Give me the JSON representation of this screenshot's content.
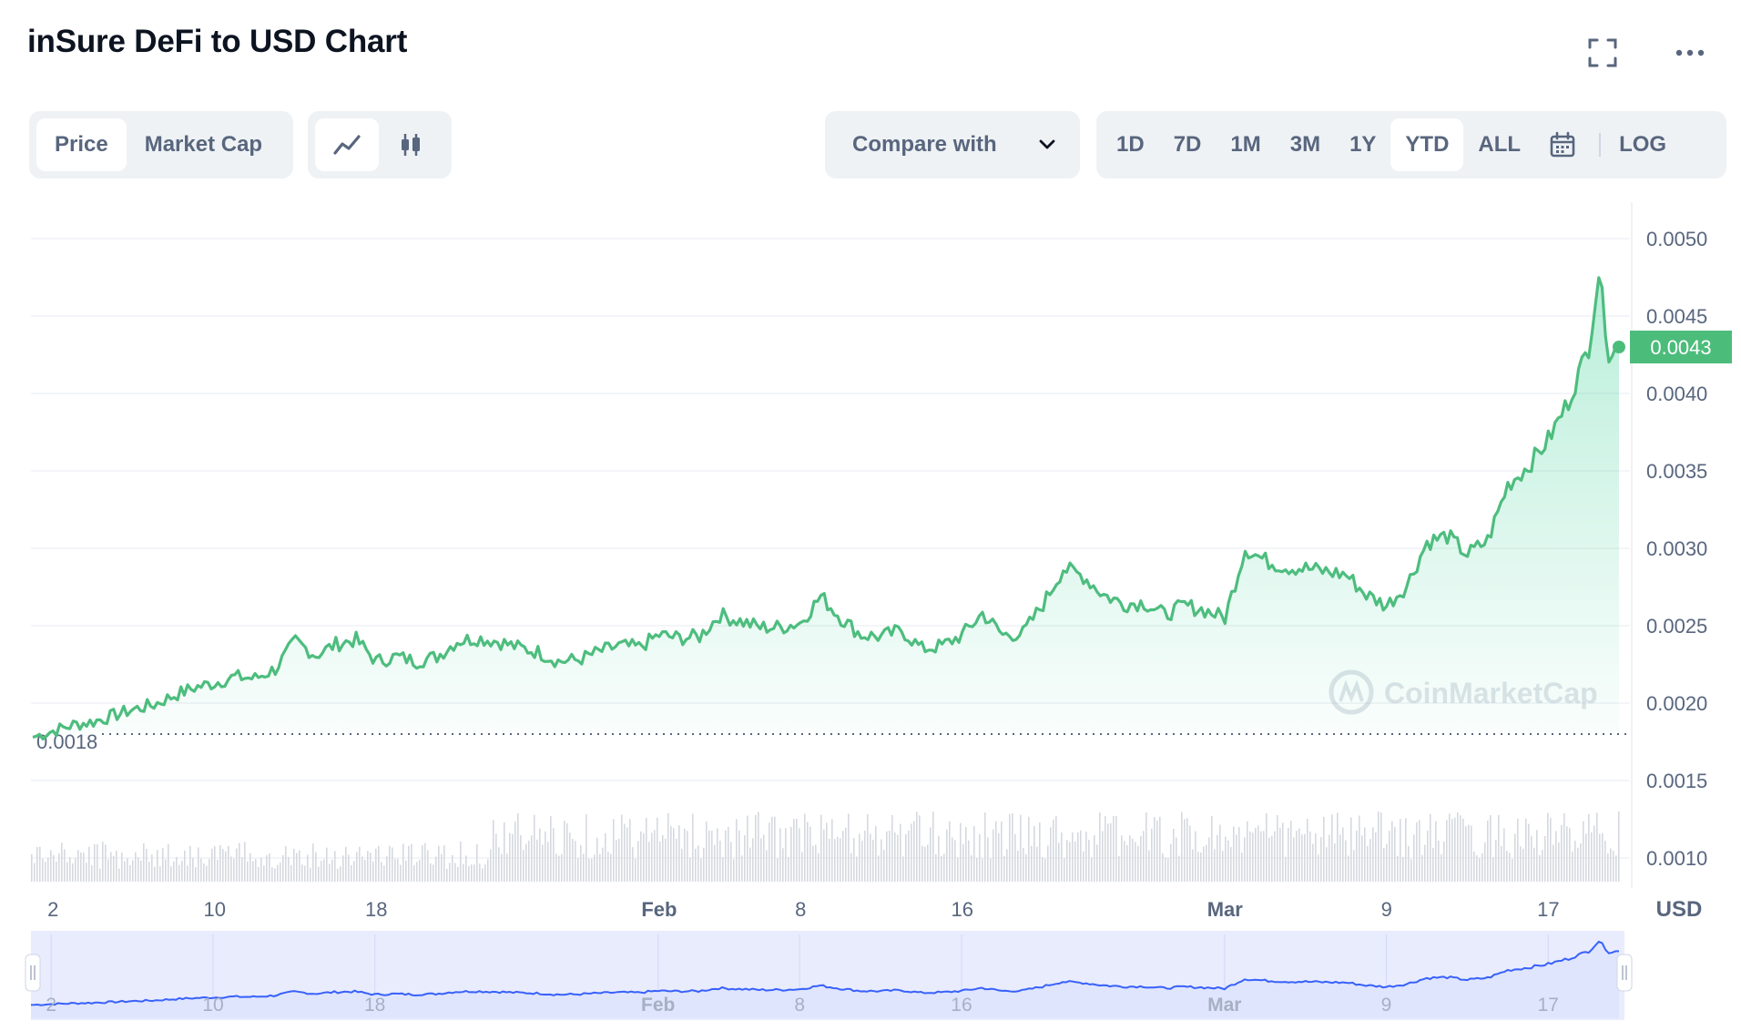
{
  "header": {
    "title": "inSure DeFi to USD Chart",
    "fullscreen_icon": "fullscreen-icon",
    "more_icon": "more-dots-icon"
  },
  "toolbar": {
    "metric_tabs": [
      {
        "label": "Price",
        "active": true
      },
      {
        "label": "Market Cap",
        "active": false
      }
    ],
    "chart_type_icons": [
      "line-chart-icon",
      "candlestick-icon"
    ],
    "compare_label": "Compare with",
    "ranges": [
      {
        "label": "1D",
        "active": false
      },
      {
        "label": "7D",
        "active": false
      },
      {
        "label": "1M",
        "active": false
      },
      {
        "label": "3M",
        "active": false
      },
      {
        "label": "1Y",
        "active": false
      },
      {
        "label": "YTD",
        "active": true
      },
      {
        "label": "ALL",
        "active": false
      }
    ],
    "calendar_icon": "calendar-icon",
    "log_label": "LOG"
  },
  "colors": {
    "line": "#16c784",
    "line_stroke": "#4dbd7e",
    "current_price_bg": "#4cbc7b",
    "navigator_line": "#3861fb",
    "navigator_fill": "#e9ecfd",
    "volume": "#d5d9df"
  },
  "chart_data": {
    "type": "line",
    "y_ticks": [
      "0.0050",
      "0.0045",
      "0.0040",
      "0.0035",
      "0.0030",
      "0.0025",
      "0.0020",
      "0.0015",
      "0.0010"
    ],
    "ylim": [
      0.0007,
      0.0052
    ],
    "x_ticks": [
      {
        "label": "2",
        "day": 1,
        "bold": false
      },
      {
        "label": "10",
        "day": 9,
        "bold": false
      },
      {
        "label": "18",
        "day": 17,
        "bold": false
      },
      {
        "label": "Feb",
        "day": 31,
        "bold": true
      },
      {
        "label": "8",
        "day": 38,
        "bold": false
      },
      {
        "label": "16",
        "day": 46,
        "bold": false
      },
      {
        "label": "Mar",
        "day": 59,
        "bold": true
      },
      {
        "label": "9",
        "day": 67,
        "bold": false
      },
      {
        "label": "17",
        "day": 75,
        "bold": false
      }
    ],
    "currency_label": "USD",
    "current_price": "0.0043",
    "start_price_label": "0.0018",
    "watermark": "CoinMarketCap",
    "series": [
      {
        "points": [
          [
            0,
            0.00178
          ],
          [
            1,
            0.00182
          ],
          [
            2,
            0.00186
          ],
          [
            3,
            0.00188
          ],
          [
            4,
            0.00192
          ],
          [
            5,
            0.00196
          ],
          [
            6,
            0.00199
          ],
          [
            7,
            0.00205
          ],
          [
            8,
            0.0021
          ],
          [
            9,
            0.00213
          ],
          [
            10,
            0.00217
          ],
          [
            11,
            0.00216
          ],
          [
            12,
            0.00222
          ],
          [
            13,
            0.0024
          ],
          [
            14,
            0.00231
          ],
          [
            15,
            0.00238
          ],
          [
            16,
            0.00241
          ],
          [
            17,
            0.00227
          ],
          [
            18,
            0.0023
          ],
          [
            19,
            0.00227
          ],
          [
            20,
            0.0023
          ],
          [
            21,
            0.0024
          ],
          [
            22,
            0.00242
          ],
          [
            23,
            0.0024
          ],
          [
            24,
            0.00236
          ],
          [
            25,
            0.00233
          ],
          [
            26,
            0.00227
          ],
          [
            27,
            0.00228
          ],
          [
            28,
            0.00233
          ],
          [
            29,
            0.00237
          ],
          [
            30,
            0.00236
          ],
          [
            31,
            0.00244
          ],
          [
            32,
            0.00242
          ],
          [
            33,
            0.00243
          ],
          [
            34,
            0.00257
          ],
          [
            35,
            0.00253
          ],
          [
            36,
            0.00249
          ],
          [
            37,
            0.00249
          ],
          [
            38,
            0.00252
          ],
          [
            39,
            0.00269
          ],
          [
            40,
            0.00255
          ],
          [
            41,
            0.00244
          ],
          [
            42,
            0.00243
          ],
          [
            43,
            0.00247
          ],
          [
            44,
            0.00235
          ],
          [
            45,
            0.00237
          ],
          [
            46,
            0.00244
          ],
          [
            47,
            0.00258
          ],
          [
            48,
            0.00244
          ],
          [
            49,
            0.00245
          ],
          [
            50,
            0.00264
          ],
          [
            51,
            0.00287
          ],
          [
            52,
            0.00282
          ],
          [
            53,
            0.0027
          ],
          [
            54,
            0.00264
          ],
          [
            55,
            0.00265
          ],
          [
            56,
            0.00257
          ],
          [
            57,
            0.00263
          ],
          [
            58,
            0.0026
          ],
          [
            59,
            0.00255
          ],
          [
            60,
            0.003
          ],
          [
            61,
            0.00292
          ],
          [
            62,
            0.00288
          ],
          [
            63,
            0.00287
          ],
          [
            64,
            0.00285
          ],
          [
            65,
            0.00283
          ],
          [
            66,
            0.0027
          ],
          [
            67,
            0.00263
          ],
          [
            68,
            0.00276
          ],
          [
            69,
            0.00304
          ],
          [
            70,
            0.00308
          ],
          [
            71,
            0.00296
          ],
          [
            72,
            0.00305
          ],
          [
            73,
            0.00341
          ],
          [
            74,
            0.00353
          ],
          [
            75,
            0.0037
          ],
          [
            76,
            0.00395
          ],
          [
            77,
            0.0043
          ],
          [
            77.5,
            0.00478
          ],
          [
            78,
            0.00427
          ],
          [
            78.5,
            0.0043
          ]
        ]
      }
    ]
  }
}
